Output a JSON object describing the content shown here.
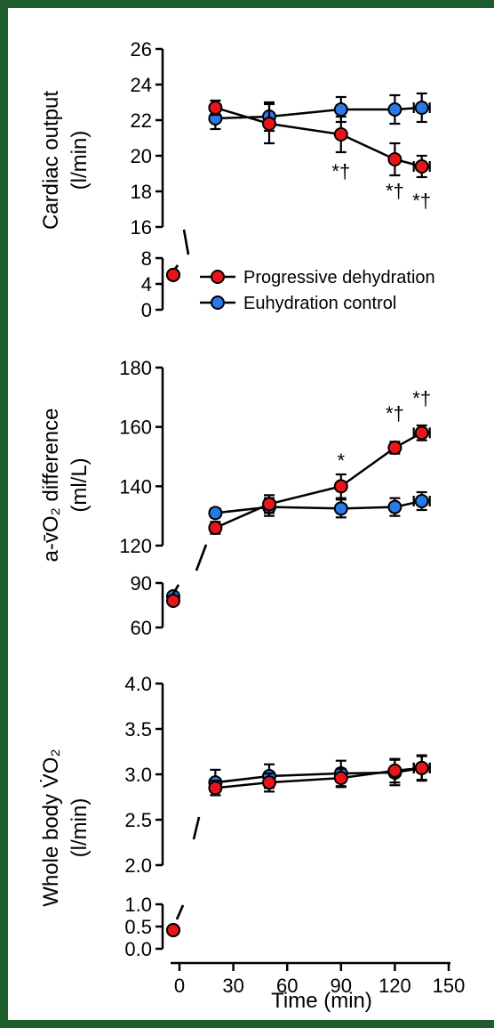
{
  "colors": {
    "frame": "#1d5c2b",
    "dehydration": "#e8161b",
    "control": "#2a79e6",
    "axis": "#000000"
  },
  "legend": {
    "entries": [
      {
        "key": "dehydration",
        "label": "Progressive dehydration"
      },
      {
        "key": "control",
        "label": "Euhydration control"
      }
    ]
  },
  "x_axis": {
    "label": "Time (min)",
    "range": [
      0,
      150
    ],
    "ticks": [
      "0",
      "30",
      "60",
      "90",
      "120",
      "150"
    ]
  },
  "chart_data": [
    {
      "type": "line",
      "panel": "cardiac",
      "ylabel_line1": "Cardiac output",
      "ylabel_line2": "(l/min)",
      "x": [
        0,
        20,
        50,
        90,
        120,
        135
      ],
      "upper_ylim": [
        16,
        26
      ],
      "upper_ticks": [
        "16",
        "18",
        "20",
        "22",
        "24",
        "26"
      ],
      "lower_ylim": [
        0,
        8
      ],
      "lower_ticks": [
        "0",
        "4",
        "8"
      ],
      "series": [
        {
          "name": "Progressive dehydration",
          "values": [
            5.4,
            22.7,
            21.8,
            21.2,
            19.8,
            19.4
          ],
          "error": [
            0.3,
            0.4,
            1.1,
            1.0,
            0.9,
            0.6
          ]
        },
        {
          "name": "Euhydration control",
          "values": [
            5.4,
            22.1,
            22.2,
            22.6,
            22.6,
            22.7
          ],
          "error": [
            0.3,
            0.6,
            0.8,
            0.7,
            0.8,
            0.8
          ]
        }
      ],
      "annotations": [
        {
          "x": 90,
          "text": "*†"
        },
        {
          "x": 120,
          "text": "*†"
        },
        {
          "x": 135,
          "text": "*†"
        }
      ]
    },
    {
      "type": "line",
      "panel": "avo2",
      "ylabel_line1": "a-v̄O₂ difference",
      "ylabel_line2": "(ml/L)",
      "x": [
        0,
        20,
        50,
        90,
        120,
        135
      ],
      "upper_ylim": [
        120,
        180
      ],
      "upper_ticks": [
        "120",
        "140",
        "160",
        "180"
      ],
      "lower_ylim": [
        60,
        90
      ],
      "lower_ticks": [
        "60",
        "90"
      ],
      "series": [
        {
          "name": "Progressive dehydration",
          "values": [
            78,
            126,
            134,
            140,
            153,
            158
          ],
          "error": [
            1.5,
            2,
            3,
            4,
            2,
            2.5
          ]
        },
        {
          "name": "Euhydration control",
          "values": [
            81,
            131,
            133,
            132.5,
            133,
            135
          ],
          "error": [
            1.5,
            1.5,
            3,
            3,
            3,
            3
          ]
        }
      ],
      "annotations": [
        {
          "x": 90,
          "text": "*"
        },
        {
          "x": 120,
          "text": "*†"
        },
        {
          "x": 135,
          "text": "*†"
        }
      ]
    },
    {
      "type": "line",
      "panel": "vo2",
      "ylabel_line1": "Whole body V̇O₂",
      "ylabel_line2": "(l/min)",
      "x": [
        0,
        20,
        50,
        90,
        120,
        135
      ],
      "upper_ylim": [
        2.0,
        4.0
      ],
      "upper_ticks": [
        "2.0",
        "2.5",
        "3.0",
        "3.5",
        "4.0"
      ],
      "lower_ylim": [
        0.0,
        1.0
      ],
      "lower_ticks": [
        "0.0",
        "0.5",
        "1.0"
      ],
      "series": [
        {
          "name": "Progressive dehydration",
          "values": [
            0.42,
            2.85,
            2.91,
            2.96,
            3.04,
            3.07
          ],
          "error": [
            0.03,
            0.08,
            0.1,
            0.1,
            0.13,
            0.13
          ]
        },
        {
          "name": "Euhydration control",
          "values": [
            0.42,
            2.91,
            2.98,
            3.01,
            3.02,
            3.07
          ],
          "error": [
            0.03,
            0.14,
            0.13,
            0.14,
            0.14,
            0.14
          ]
        }
      ],
      "annotations": []
    }
  ]
}
